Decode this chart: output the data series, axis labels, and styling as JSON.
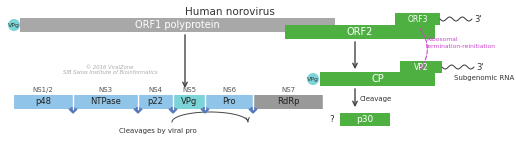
{
  "title": "Human norovirus",
  "colors": {
    "gray": "#a8a8a8",
    "green": "#4db040",
    "light_blue": "#90c4e8",
    "teal": "#7dd4d8",
    "gray_seg": "#999999",
    "vpg_circle": "#7dd4d8",
    "arrow": "#444444",
    "ribosomal": "#cc44cc",
    "text_dark": "#333333",
    "text_gray": "#aaaaaa"
  },
  "copyright_line1": "© 2016 ViralZone",
  "copyright_line2": "SIB Swiss Institute of Bioinformatics"
}
